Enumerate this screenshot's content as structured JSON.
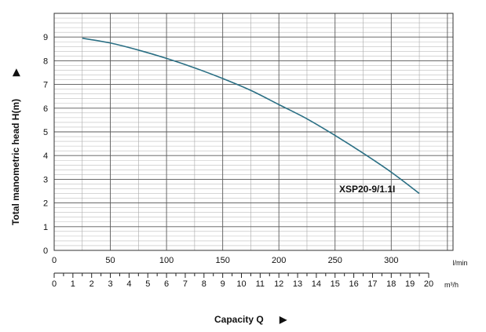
{
  "chart_data": {
    "type": "line",
    "series": [
      {
        "name": "XSP20-9/1.1I",
        "color": "#2a6f84",
        "x": [
          25,
          50,
          75,
          100,
          125,
          150,
          175,
          200,
          225,
          250,
          275,
          300,
          325
        ],
        "y": [
          8.95,
          8.75,
          8.45,
          8.1,
          7.7,
          7.25,
          6.75,
          6.15,
          5.55,
          4.85,
          4.1,
          3.3,
          2.4
        ]
      }
    ],
    "xlim": [
      0,
      355
    ],
    "ylim": [
      0,
      10
    ],
    "x_ticks": [
      "0",
      "50",
      "100",
      "150",
      "200",
      "250",
      "300"
    ],
    "x_unit": "l/min",
    "x2_ticks": [
      "0",
      "1",
      "2",
      "3",
      "4",
      "5",
      "6",
      "7",
      "8",
      "9",
      "10",
      "11",
      "12",
      "13",
      "14",
      "15",
      "16",
      "17",
      "18",
      "19",
      "20"
    ],
    "x2_unit": "m³/h",
    "y_ticks": [
      "0",
      "1",
      "2",
      "3",
      "4",
      "5",
      "6",
      "7",
      "8",
      "9"
    ],
    "ylabel": "Total manometric head H(m)",
    "xlabel": "Capacity Q",
    "arrow_glyph": "▶",
    "grid": true
  }
}
